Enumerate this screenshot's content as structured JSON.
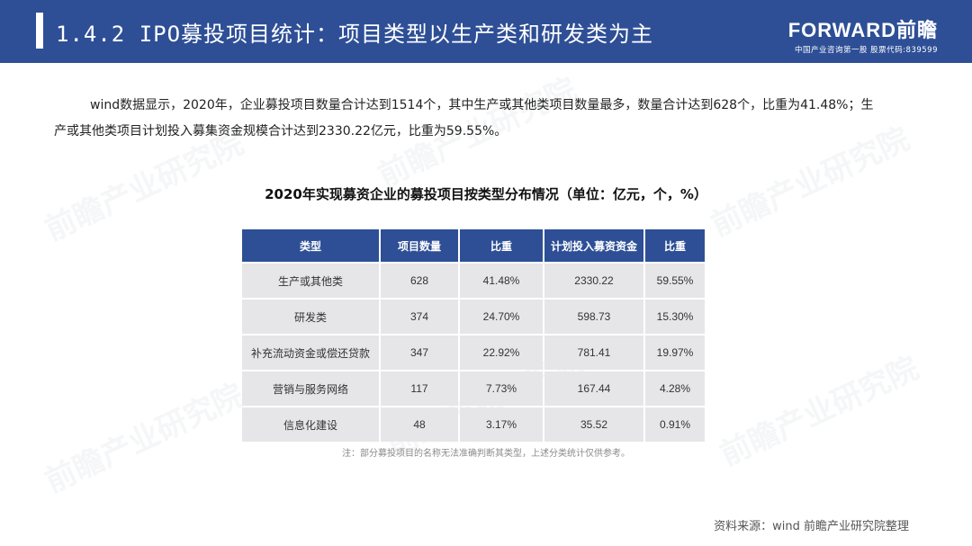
{
  "header": {
    "title": "1.4.2 IPO募投项目统计：项目类型以生产类和研发类为主",
    "logo_main": "FORWARD前瞻",
    "logo_sub": "中国产业咨询第一股 股票代码:839599"
  },
  "intro": {
    "text": "wind数据显示，2020年，企业募投项目数量合计达到1514个，其中生产或其他类项目数量最多，数量合计达到628个，比重为41.48%；生产或其他类项目计划投入募集资金规模合计达到2330.22亿元，比重为59.55%。"
  },
  "table": {
    "title": "2020年实现募资企业的募投项目按类型分布情况（单位：亿元，个，%）",
    "headers": [
      "类型",
      "项目数量",
      "比重",
      "计划投入募资资金",
      "比重"
    ],
    "rows": [
      [
        "生产或其他类",
        "628",
        "41.48%",
        "2330.22",
        "59.55%"
      ],
      [
        "研发类",
        "374",
        "24.70%",
        "598.73",
        "15.30%"
      ],
      [
        "补充流动资金或偿还贷款",
        "347",
        "22.92%",
        "781.41",
        "19.97%"
      ],
      [
        "营销与服务网络",
        "117",
        "7.73%",
        "167.44",
        "4.28%"
      ],
      [
        "信息化建设",
        "48",
        "3.17%",
        "35.52",
        "0.91%"
      ]
    ]
  },
  "note": "注：部分募投项目的名称无法准确判断其类型，上述分类统计仅供参考。",
  "source": "资料来源：wind 前瞻产业研究院整理",
  "watermark": "前瞻产业研究院",
  "colors": {
    "header_bg": "#2e4f96",
    "cell_bg": "#e6e6e8"
  }
}
